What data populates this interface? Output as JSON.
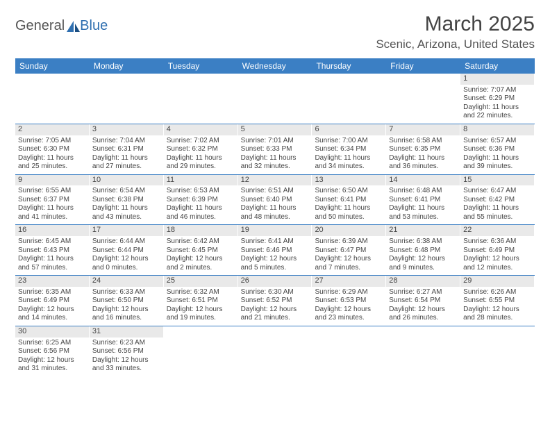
{
  "logo": {
    "text_a": "General",
    "text_b": "Blue"
  },
  "colors": {
    "header_bg": "#3b7fc4",
    "daynum_bg": "#e9e9e9",
    "text": "#444444",
    "location": "#555555",
    "logo_blue": "#2f6fb0"
  },
  "month_title": "March 2025",
  "location": "Scenic, Arizona, United States",
  "weekdays": [
    "Sunday",
    "Monday",
    "Tuesday",
    "Wednesday",
    "Thursday",
    "Friday",
    "Saturday"
  ],
  "weeks": [
    [
      null,
      null,
      null,
      null,
      null,
      null,
      {
        "num": "1",
        "sunrise": "Sunrise: 7:07 AM",
        "sunset": "Sunset: 6:29 PM",
        "daylight": "Daylight: 11 hours and 22 minutes."
      }
    ],
    [
      {
        "num": "2",
        "sunrise": "Sunrise: 7:05 AM",
        "sunset": "Sunset: 6:30 PM",
        "daylight": "Daylight: 11 hours and 25 minutes."
      },
      {
        "num": "3",
        "sunrise": "Sunrise: 7:04 AM",
        "sunset": "Sunset: 6:31 PM",
        "daylight": "Daylight: 11 hours and 27 minutes."
      },
      {
        "num": "4",
        "sunrise": "Sunrise: 7:02 AM",
        "sunset": "Sunset: 6:32 PM",
        "daylight": "Daylight: 11 hours and 29 minutes."
      },
      {
        "num": "5",
        "sunrise": "Sunrise: 7:01 AM",
        "sunset": "Sunset: 6:33 PM",
        "daylight": "Daylight: 11 hours and 32 minutes."
      },
      {
        "num": "6",
        "sunrise": "Sunrise: 7:00 AM",
        "sunset": "Sunset: 6:34 PM",
        "daylight": "Daylight: 11 hours and 34 minutes."
      },
      {
        "num": "7",
        "sunrise": "Sunrise: 6:58 AM",
        "sunset": "Sunset: 6:35 PM",
        "daylight": "Daylight: 11 hours and 36 minutes."
      },
      {
        "num": "8",
        "sunrise": "Sunrise: 6:57 AM",
        "sunset": "Sunset: 6:36 PM",
        "daylight": "Daylight: 11 hours and 39 minutes."
      }
    ],
    [
      {
        "num": "9",
        "sunrise": "Sunrise: 6:55 AM",
        "sunset": "Sunset: 6:37 PM",
        "daylight": "Daylight: 11 hours and 41 minutes."
      },
      {
        "num": "10",
        "sunrise": "Sunrise: 6:54 AM",
        "sunset": "Sunset: 6:38 PM",
        "daylight": "Daylight: 11 hours and 43 minutes."
      },
      {
        "num": "11",
        "sunrise": "Sunrise: 6:53 AM",
        "sunset": "Sunset: 6:39 PM",
        "daylight": "Daylight: 11 hours and 46 minutes."
      },
      {
        "num": "12",
        "sunrise": "Sunrise: 6:51 AM",
        "sunset": "Sunset: 6:40 PM",
        "daylight": "Daylight: 11 hours and 48 minutes."
      },
      {
        "num": "13",
        "sunrise": "Sunrise: 6:50 AM",
        "sunset": "Sunset: 6:41 PM",
        "daylight": "Daylight: 11 hours and 50 minutes."
      },
      {
        "num": "14",
        "sunrise": "Sunrise: 6:48 AM",
        "sunset": "Sunset: 6:41 PM",
        "daylight": "Daylight: 11 hours and 53 minutes."
      },
      {
        "num": "15",
        "sunrise": "Sunrise: 6:47 AM",
        "sunset": "Sunset: 6:42 PM",
        "daylight": "Daylight: 11 hours and 55 minutes."
      }
    ],
    [
      {
        "num": "16",
        "sunrise": "Sunrise: 6:45 AM",
        "sunset": "Sunset: 6:43 PM",
        "daylight": "Daylight: 11 hours and 57 minutes."
      },
      {
        "num": "17",
        "sunrise": "Sunrise: 6:44 AM",
        "sunset": "Sunset: 6:44 PM",
        "daylight": "Daylight: 12 hours and 0 minutes."
      },
      {
        "num": "18",
        "sunrise": "Sunrise: 6:42 AM",
        "sunset": "Sunset: 6:45 PM",
        "daylight": "Daylight: 12 hours and 2 minutes."
      },
      {
        "num": "19",
        "sunrise": "Sunrise: 6:41 AM",
        "sunset": "Sunset: 6:46 PM",
        "daylight": "Daylight: 12 hours and 5 minutes."
      },
      {
        "num": "20",
        "sunrise": "Sunrise: 6:39 AM",
        "sunset": "Sunset: 6:47 PM",
        "daylight": "Daylight: 12 hours and 7 minutes."
      },
      {
        "num": "21",
        "sunrise": "Sunrise: 6:38 AM",
        "sunset": "Sunset: 6:48 PM",
        "daylight": "Daylight: 12 hours and 9 minutes."
      },
      {
        "num": "22",
        "sunrise": "Sunrise: 6:36 AM",
        "sunset": "Sunset: 6:49 PM",
        "daylight": "Daylight: 12 hours and 12 minutes."
      }
    ],
    [
      {
        "num": "23",
        "sunrise": "Sunrise: 6:35 AM",
        "sunset": "Sunset: 6:49 PM",
        "daylight": "Daylight: 12 hours and 14 minutes."
      },
      {
        "num": "24",
        "sunrise": "Sunrise: 6:33 AM",
        "sunset": "Sunset: 6:50 PM",
        "daylight": "Daylight: 12 hours and 16 minutes."
      },
      {
        "num": "25",
        "sunrise": "Sunrise: 6:32 AM",
        "sunset": "Sunset: 6:51 PM",
        "daylight": "Daylight: 12 hours and 19 minutes."
      },
      {
        "num": "26",
        "sunrise": "Sunrise: 6:30 AM",
        "sunset": "Sunset: 6:52 PM",
        "daylight": "Daylight: 12 hours and 21 minutes."
      },
      {
        "num": "27",
        "sunrise": "Sunrise: 6:29 AM",
        "sunset": "Sunset: 6:53 PM",
        "daylight": "Daylight: 12 hours and 23 minutes."
      },
      {
        "num": "28",
        "sunrise": "Sunrise: 6:27 AM",
        "sunset": "Sunset: 6:54 PM",
        "daylight": "Daylight: 12 hours and 26 minutes."
      },
      {
        "num": "29",
        "sunrise": "Sunrise: 6:26 AM",
        "sunset": "Sunset: 6:55 PM",
        "daylight": "Daylight: 12 hours and 28 minutes."
      }
    ],
    [
      {
        "num": "30",
        "sunrise": "Sunrise: 6:25 AM",
        "sunset": "Sunset: 6:56 PM",
        "daylight": "Daylight: 12 hours and 31 minutes."
      },
      {
        "num": "31",
        "sunrise": "Sunrise: 6:23 AM",
        "sunset": "Sunset: 6:56 PM",
        "daylight": "Daylight: 12 hours and 33 minutes."
      },
      null,
      null,
      null,
      null,
      null
    ]
  ]
}
